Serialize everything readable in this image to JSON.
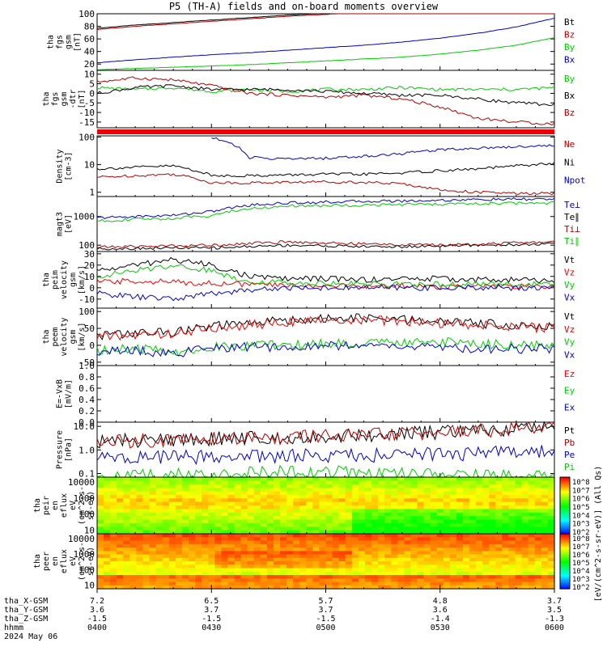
{
  "title": "P5 (TH-A) fields and on-board moments overview",
  "date_label": "2024 May 06",
  "colors": {
    "black": "#000000",
    "red": "#b30000",
    "brightred": "#ee0000",
    "green": "#00cc00",
    "blue": "#0000cc"
  },
  "chart_data": [
    {
      "type": "line",
      "id": "fgs_gsm",
      "ylabel": [
        "tha",
        "fgs",
        "gsm",
        "[nT]"
      ],
      "yticks": [
        "100",
        "80",
        "60",
        "40",
        "20"
      ],
      "ylim": [
        10,
        100
      ],
      "series": [
        {
          "name": "Bt",
          "color": "#000000",
          "values": [
            77,
            82,
            86,
            90,
            94,
            98,
            101,
            103,
            104,
            105,
            106,
            107,
            108
          ]
        },
        {
          "name": "Bz",
          "color": "#b30000",
          "values": [
            75,
            80,
            84,
            88,
            92,
            96,
            99,
            102,
            103,
            104,
            105,
            106,
            107
          ]
        },
        {
          "name": "By",
          "color": "#00cc00",
          "values": [
            11,
            13,
            15,
            17,
            19,
            22,
            25,
            28,
            31,
            36,
            42,
            50,
            62
          ]
        },
        {
          "name": "Bx",
          "color": "#0000cc",
          "values": [
            22,
            27,
            31,
            35,
            38,
            42,
            46,
            50,
            55,
            61,
            69,
            79,
            93
          ]
        }
      ]
    },
    {
      "type": "line",
      "id": "fgs_gsm_dtr",
      "ylabel": [
        "tha",
        "fgs",
        "gsm",
        "-dtr",
        "[nT]"
      ],
      "yticks": [
        "10",
        "5",
        "0",
        "-5",
        "-10",
        "-15"
      ],
      "ylim": [
        -18,
        12
      ],
      "series": [
        {
          "name": "By",
          "color": "#00cc00",
          "values": [
            3,
            2,
            3,
            1,
            2,
            1,
            2,
            2,
            3,
            2,
            2,
            2,
            3
          ]
        },
        {
          "name": "Bx",
          "color": "#000000",
          "values": [
            0,
            3,
            4,
            2,
            2,
            2,
            1,
            0,
            -1,
            -1,
            -3,
            -5,
            -6
          ]
        },
        {
          "name": "Bz",
          "color": "#b30000",
          "values": [
            6,
            8,
            7,
            4,
            0,
            -1,
            -2,
            -1,
            -3,
            -7,
            -13,
            -15,
            -16
          ]
        }
      ]
    },
    {
      "type": "line",
      "id": "density",
      "log": true,
      "ylabel": [
        "Density",
        "[cm-3]"
      ],
      "yticks": [
        "100",
        "10",
        "1"
      ],
      "ylim": [
        0.7,
        110
      ],
      "series": [
        {
          "name": "Ne",
          "color": "#b30000",
          "values": [
            3.5,
            4,
            4.5,
            2.2,
            2.2,
            2.3,
            2.4,
            2.3,
            2.0,
            1.2,
            1.0,
            0.9,
            0.9
          ]
        },
        {
          "name": "Ni",
          "color": "#000000",
          "values": [
            7,
            8,
            9,
            4,
            4,
            4.2,
            4.5,
            4.5,
            5,
            6,
            7,
            9,
            11
          ]
        },
        {
          "name": "Npot",
          "color": "#0000cc",
          "values": [
            null,
            null,
            null,
            100,
            18,
            16,
            17,
            20,
            25,
            35,
            40,
            45,
            50
          ]
        }
      ]
    },
    {
      "type": "line",
      "id": "temperature",
      "log": true,
      "ylabel": [
        "magt3",
        "[eV]"
      ],
      "yticks": [
        "1000",
        "100"
      ],
      "ylim": [
        60,
        5000
      ],
      "series": [
        {
          "name": "Te⊥",
          "color": "#0000cc",
          "values": [
            900,
            1000,
            1100,
            1500,
            2500,
            3000,
            3200,
            3400,
            3500,
            3700,
            3900,
            4000,
            4100
          ]
        },
        {
          "name": "Te∥",
          "color": "#000000",
          "values": [
            75,
            78,
            80,
            80,
            90,
            100,
            95,
            90,
            88,
            95,
            100,
            105,
            110
          ]
        },
        {
          "name": "Ti⊥",
          "color": "#b30000",
          "values": [
            85,
            90,
            95,
            100,
            115,
            130,
            120,
            110,
            105,
            100,
            110,
            120,
            130
          ]
        },
        {
          "name": "Ti∥",
          "color": "#00cc00",
          "values": [
            700,
            800,
            850,
            1100,
            1900,
            2300,
            2400,
            2500,
            2600,
            2700,
            2800,
            2900,
            3000
          ]
        }
      ]
    },
    {
      "type": "line",
      "id": "peim_velocity",
      "ylabel": [
        "tha",
        "peim",
        "velocity",
        "gsm",
        "[km/s]"
      ],
      "yticks": [
        "30",
        "20",
        "10",
        "0",
        "-10"
      ],
      "ylim": [
        -18,
        32
      ],
      "series": [
        {
          "name": "Vt",
          "color": "#000000",
          "values": [
            15,
            20,
            25,
            20,
            10,
            8,
            8,
            7,
            8,
            8,
            7,
            7,
            6
          ]
        },
        {
          "name": "Vz",
          "color": "#ee0000",
          "values": [
            5,
            6,
            5,
            4,
            3,
            2,
            2,
            1,
            2,
            1,
            1,
            1,
            1
          ]
        },
        {
          "name": "Vy",
          "color": "#00cc00",
          "values": [
            10,
            15,
            20,
            15,
            5,
            5,
            4,
            4,
            3,
            3,
            3,
            3,
            3
          ]
        },
        {
          "name": "Vx",
          "color": "#0000cc",
          "values": [
            -5,
            -8,
            -10,
            -5,
            -2,
            0,
            0,
            0,
            0,
            0,
            0,
            0,
            0
          ]
        }
      ]
    },
    {
      "type": "line",
      "id": "peem_velocity",
      "ylabel": [
        "tha",
        "peem",
        "velocity",
        "gsm",
        "[km/s]"
      ],
      "yticks": [
        "100",
        "50",
        "0",
        "-50"
      ],
      "ylim": [
        -60,
        110
      ],
      "series": [
        {
          "name": "Vt",
          "color": "#000000",
          "values": [
            30,
            35,
            40,
            55,
            65,
            75,
            78,
            80,
            75,
            70,
            65,
            60,
            55
          ]
        },
        {
          "name": "Vz",
          "color": "#ee0000",
          "values": [
            25,
            30,
            35,
            50,
            60,
            70,
            72,
            75,
            70,
            65,
            60,
            55,
            50
          ]
        },
        {
          "name": "Vy",
          "color": "#00cc00",
          "values": [
            -15,
            -10,
            -20,
            -5,
            0,
            0,
            5,
            5,
            10,
            10,
            5,
            0,
            0
          ]
        },
        {
          "name": "Vx",
          "color": "#0000cc",
          "values": [
            -20,
            -15,
            -25,
            -10,
            -5,
            -5,
            0,
            0,
            -5,
            -5,
            -10,
            -10,
            -10
          ]
        }
      ]
    },
    {
      "type": "line",
      "id": "efield",
      "ylabel": [
        "E=-VxB",
        "[mV/m]"
      ],
      "yticks": [
        "1.0",
        "0.8",
        "0.6",
        "0.4",
        "0.2",
        "0.0"
      ],
      "ylim": [
        0,
        1
      ],
      "series": [
        {
          "name": "Ez",
          "color": "#ee0000",
          "values": []
        },
        {
          "name": "Ey",
          "color": "#00cc00",
          "values": []
        },
        {
          "name": "Ex",
          "color": "#0000cc",
          "values": []
        }
      ]
    },
    {
      "type": "line",
      "id": "pressure",
      "log": true,
      "ylabel": [
        "Pressure",
        "[nPa]"
      ],
      "yticks": [
        "10.0",
        "1.0",
        "0.1"
      ],
      "ylim": [
        0.07,
        15
      ],
      "series": [
        {
          "name": "Pt",
          "color": "#000000",
          "values": [
            2.3,
            2.5,
            2.7,
            3.0,
            3.2,
            3.5,
            3.8,
            4.2,
            4.8,
            5.5,
            6.5,
            8,
            10
          ]
        },
        {
          "name": "Pb",
          "color": "#b30000",
          "values": [
            2.2,
            2.4,
            2.6,
            2.9,
            3.1,
            3.4,
            3.7,
            4.1,
            4.7,
            5.4,
            6.4,
            7.9,
            9.9
          ]
        },
        {
          "name": "Pe",
          "color": "#0000cc",
          "values": [
            0.45,
            0.47,
            0.5,
            0.5,
            0.52,
            0.55,
            0.58,
            0.6,
            0.62,
            0.65,
            0.7,
            0.8,
            0.9
          ]
        },
        {
          "name": "Pi",
          "color": "#00cc00",
          "values": [
            0.07,
            0.08,
            0.08,
            0.09,
            0.1,
            0.12,
            0.11,
            0.1,
            0.09,
            0.08,
            0.08,
            0.08,
            0.08
          ]
        }
      ]
    },
    {
      "type": "heatmap",
      "id": "peir_spec",
      "ylabel": [
        "tha",
        "peir",
        "en",
        "eflux",
        "eV",
        "(cm^2-s-",
        "sr-eV)"
      ],
      "yticks": [
        "10000",
        "1000",
        "100",
        "10"
      ],
      "ylim": [
        6,
        20000
      ]
    },
    {
      "type": "heatmap",
      "id": "peer_spec",
      "ylabel": [
        "tha",
        "peer",
        "en",
        "eflux",
        "eV",
        "(cm^2-s-",
        "sr-eV)"
      ],
      "yticks": [
        "10000",
        "1000",
        "100",
        "10"
      ],
      "ylim": [
        6,
        20000
      ]
    }
  ],
  "colorbar": {
    "label": "[eV/(cm^2-s-sr-eV)] (All Qs)",
    "ticks_top": [
      "10^8",
      "10^7",
      "10^6",
      "10^5",
      "10^4",
      "10^3",
      "10^2"
    ],
    "ticks_bottom": [
      "10^8",
      "10^7",
      "10^6",
      "10^5",
      "10^4",
      "10^3",
      "10^2"
    ]
  },
  "xaxis": {
    "tick_labels": [
      "0400",
      "0430",
      "0500",
      "0530",
      "0600"
    ],
    "rows": [
      {
        "label": "tha_X-GSM",
        "values": [
          "7.2",
          "6.5",
          "5.7",
          "4.8",
          "3.7"
        ]
      },
      {
        "label": "tha_Y-GSM",
        "values": [
          "3.6",
          "3.7",
          "3.7",
          "3.6",
          "3.5"
        ]
      },
      {
        "label": "tha_Z-GSM",
        "values": [
          "-1.5",
          "-1.5",
          "-1.5",
          "-1.4",
          "-1.3"
        ]
      },
      {
        "label": "hhmm",
        "values": [
          "0400",
          "0430",
          "0500",
          "0530",
          "0600"
        ]
      }
    ]
  }
}
